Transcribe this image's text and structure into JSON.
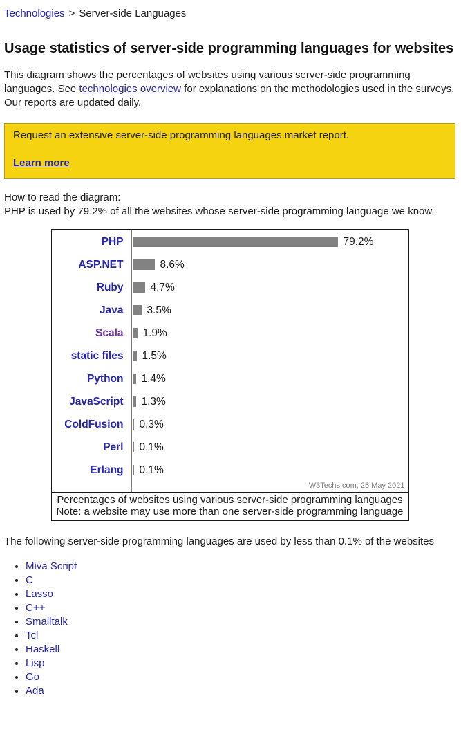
{
  "theme": {
    "accent": "#2626ae",
    "visited": "#6b2f9e",
    "banner_bg": "#f5d311",
    "banner_border": "#b39b25",
    "bar": "#828282",
    "muted": "#7d7d7d"
  },
  "breadcrumb": {
    "link": "Technologies",
    "separator": ">",
    "current": "Server-side Languages"
  },
  "page_title": "Usage statistics of server-side programming languages for websites",
  "intro": {
    "before_link": "This diagram shows the percentages of websites using various server-side programming languages. See ",
    "link": "technologies overview",
    "after_link": " for explanations on the methodologies used in the surveys. Our reports are updated daily."
  },
  "banner": {
    "text": "Request an extensive server-side programming languages market report.",
    "link_label": "Learn more"
  },
  "how_to_read": {
    "line1": "How to read the diagram:",
    "line2": "PHP is used by 79.2% of all the websites whose server-side programming language we know."
  },
  "chart_data": {
    "type": "bar",
    "orientation": "horizontal",
    "categories": [
      "PHP",
      "ASP.NET",
      "Ruby",
      "Java",
      "Scala",
      "static files",
      "Python",
      "JavaScript",
      "ColdFusion",
      "Perl",
      "Erlang"
    ],
    "values": [
      79.2,
      8.6,
      4.7,
      3.5,
      1.9,
      1.5,
      1.4,
      1.3,
      0.3,
      0.1,
      0.1
    ],
    "value_labels": [
      "79.2%",
      "8.6%",
      "4.7%",
      "3.5%",
      "1.9%",
      "1.5%",
      "1.4%",
      "1.3%",
      "0.3%",
      "0.1%",
      "0.1%"
    ],
    "xlim": [
      0,
      100
    ],
    "grid": false,
    "bar_color": "#828282",
    "label_color": "#2626ae",
    "visited_label": "Scala",
    "visited_label_color": "#6b2f9e",
    "watermark": "W3Techs.com, 25 May 2021",
    "caption_line1": "Percentages of websites using various server-side programming languages",
    "caption_line2": "Note: a website may use more than one server-side programming language"
  },
  "below_text": "The following server-side programming languages are used by less than 0.1% of the websites",
  "less_than_list": [
    "Miva Script",
    "C",
    "Lasso",
    "C++",
    "Smalltalk",
    "Tcl",
    "Haskell",
    "Lisp",
    "Go",
    "Ada"
  ]
}
